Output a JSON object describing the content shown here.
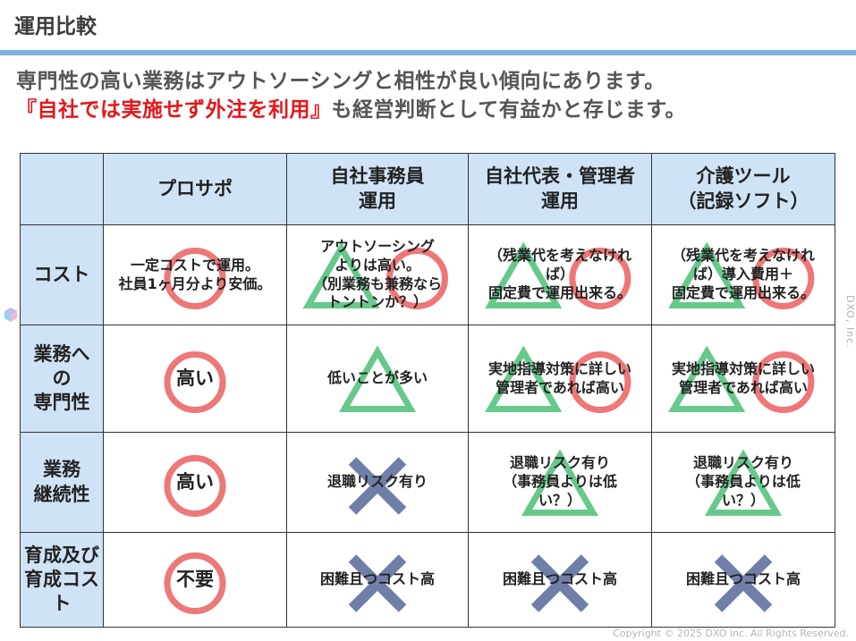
{
  "title": "運用比較",
  "intro": {
    "line1": "専門性の高い業務はアウトソーシングと相性が良い傾向にあります。",
    "line2_red": "『自社では実施せず外注を利用』",
    "line2_rest": "も経営判断として有益かと存じます。"
  },
  "colors": {
    "circle": "#ee7777",
    "triangle": "#66c98a",
    "cross": "#6f7fa8",
    "header_bg": "#cfe3f7",
    "red": "#e6161b"
  },
  "table": {
    "columns": [
      "プロサポ",
      "自社事務員\n運用",
      "自社代表・管理者\n運用",
      "介護ツール\n（記録ソフト）"
    ],
    "rows": [
      {
        "label": "コスト",
        "cells": [
          {
            "text": "一定コストで運用。\n社員1ヶ月分より安価。",
            "marks": [
              "circle"
            ]
          },
          {
            "text": "アウトソーシング\nよりは高い。\n（別業務も兼務なら\nトントンか？）",
            "marks": [
              "triangle",
              "circle"
            ]
          },
          {
            "text": "（残業代を考えなけれ\nば）\n固定費で運用出来る。",
            "marks": [
              "triangle",
              "circle"
            ]
          },
          {
            "text": "（残業代を考えなけれ\nば）導入費用＋\n固定費で運用出来る。",
            "marks": [
              "triangle",
              "circle"
            ]
          }
        ]
      },
      {
        "label": "業務へ\nの\n専門性",
        "cells": [
          {
            "text": "高い",
            "marks": [
              "circle"
            ],
            "big": true
          },
          {
            "text": "低いことが多い",
            "marks": [
              "triangle"
            ]
          },
          {
            "text": "実地指導対策に詳しい\n管理者であれば高い",
            "marks": [
              "triangle",
              "circle"
            ]
          },
          {
            "text": "実地指導対策に詳しい\n管理者であれば高い",
            "marks": [
              "triangle",
              "circle"
            ]
          }
        ]
      },
      {
        "label": "業務\n継続性",
        "cells": [
          {
            "text": "高い",
            "marks": [
              "circle"
            ],
            "big": true
          },
          {
            "text": "退職リスク有り",
            "marks": [
              "cross"
            ]
          },
          {
            "text": "退職リスク有り\n（事務員よりは低\nい？）",
            "marks": [
              "triangle"
            ]
          },
          {
            "text": "退職リスク有り\n（事務員よりは低\nい？）",
            "marks": [
              "triangle"
            ]
          }
        ]
      },
      {
        "label": "育成及び\n育成コス\nト",
        "cells": [
          {
            "text": "不要",
            "marks": [
              "circle"
            ],
            "big": true
          },
          {
            "text": "困難且つコスト高",
            "marks": [
              "cross"
            ]
          },
          {
            "text": "困難且つコスト高",
            "marks": [
              "cross"
            ]
          },
          {
            "text": "困難且つコスト高",
            "marks": [
              "cross"
            ]
          }
        ]
      }
    ]
  },
  "side_text": "DXO, Inc.",
  "footer": "Copyright © 2025 DXO inc. All Rights Reserved."
}
